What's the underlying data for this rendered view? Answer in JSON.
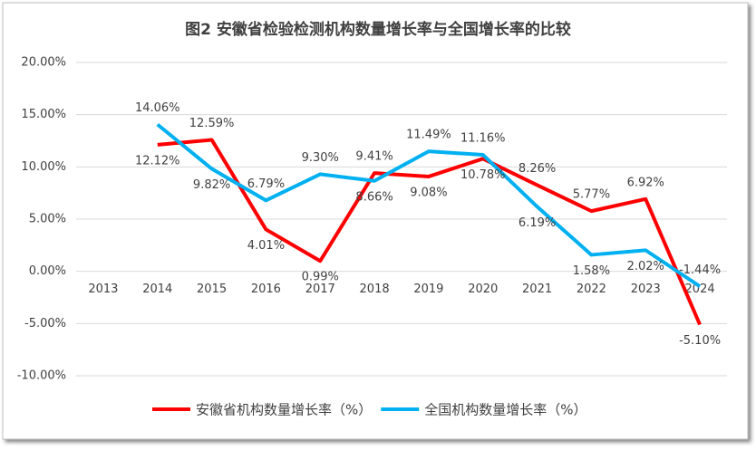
{
  "chart_data": {
    "type": "line",
    "title": "图2 安徽省检验检测机构数量增长率与全国增长率的比较",
    "categories": [
      "2013",
      "2014",
      "2015",
      "2016",
      "2017",
      "2018",
      "2019",
      "2020",
      "2021",
      "2022",
      "2023",
      "2024"
    ],
    "series": [
      {
        "name": "安徽省机构数量增长率（%）",
        "color": "#ff0000",
        "values": [
          null,
          12.12,
          12.59,
          4.01,
          0.99,
          9.41,
          9.08,
          10.78,
          8.26,
          5.77,
          6.92,
          -5.1
        ],
        "value_labels": [
          null,
          "12.12%",
          "12.59%",
          "4.01%",
          "0.99%",
          "9.41%",
          "9.08%",
          "10.78%",
          "8.26%",
          "5.77%",
          "6.92%",
          "-5.10%"
        ]
      },
      {
        "name": "全国机构数量增长率（%）",
        "color": "#00b0f0",
        "values": [
          null,
          14.06,
          9.82,
          6.79,
          9.3,
          8.66,
          11.49,
          11.16,
          6.19,
          1.58,
          2.02,
          -1.44
        ],
        "value_labels": [
          null,
          "14.06%",
          "9.82%",
          "6.79%",
          "9.30%",
          "8.66%",
          "11.49%",
          "11.16%",
          "6.19%",
          "1.58%",
          "2.02%",
          "-1.44%"
        ]
      }
    ],
    "ylim": [
      -10,
      20
    ],
    "yticks": [
      {
        "value": -10,
        "label": "-10.00%"
      },
      {
        "value": -5,
        "label": "-5.00%"
      },
      {
        "value": 0,
        "label": "0.00%"
      },
      {
        "value": 5,
        "label": "5.00%"
      },
      {
        "value": 10,
        "label": "10.00%"
      },
      {
        "value": 15,
        "label": "15.00%"
      },
      {
        "value": 20,
        "label": "20.00%"
      }
    ],
    "grid": true,
    "legend": "bottom"
  }
}
